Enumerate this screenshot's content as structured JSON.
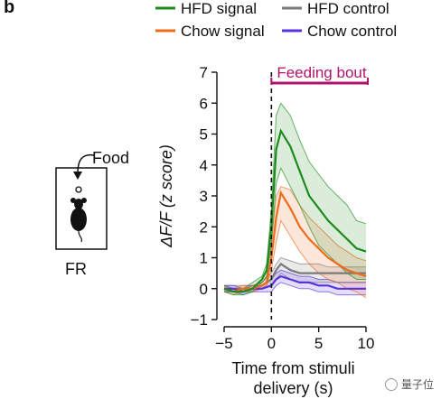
{
  "panel_letter": "b",
  "food_label": "Food",
  "mouse_caption": "FR",
  "watermark": "量子位",
  "chart_data": {
    "type": "line",
    "ylabel": "ΔF/F (z score)",
    "xlabel_lines": [
      "Time from stimuli",
      "delivery (s)"
    ],
    "xlim": [
      -5,
      10
    ],
    "ylim": [
      -1,
      7
    ],
    "xticks": [
      -5,
      0,
      5,
      10
    ],
    "yticks": [
      -1,
      0,
      1,
      2,
      3,
      4,
      5,
      6,
      7
    ],
    "event": {
      "x": 0,
      "label": "Feeding bout",
      "color": "#b0136a"
    },
    "legend": [
      {
        "name": "HFD signal",
        "color": "#1c8a1c"
      },
      {
        "name": "HFD control",
        "color": "#7a7a7a"
      },
      {
        "name": "Chow signal",
        "color": "#f06a1a"
      },
      {
        "name": "Chow control",
        "color": "#5533dd"
      }
    ],
    "series": [
      {
        "name": "HFD signal",
        "color": "#1c8a1c",
        "x": [
          -5,
          -4,
          -3,
          -2,
          -1,
          -0.5,
          0,
          0.5,
          1,
          2,
          3,
          4,
          5,
          6,
          7,
          8,
          9,
          10
        ],
        "y": [
          0.0,
          -0.1,
          -0.1,
          0.0,
          0.3,
          0.6,
          2.0,
          4.5,
          5.1,
          4.6,
          3.8,
          3.0,
          2.6,
          2.2,
          1.9,
          1.6,
          1.3,
          1.2
        ],
        "lower": [
          -0.1,
          -0.2,
          -0.2,
          -0.1,
          0.2,
          0.4,
          1.4,
          3.4,
          3.9,
          3.3,
          2.7,
          2.0,
          1.4,
          1.1,
          0.8,
          0.5,
          0.3,
          0.3
        ],
        "upper": [
          0.1,
          0.0,
          0.0,
          0.2,
          0.4,
          0.8,
          2.6,
          5.6,
          6.0,
          5.6,
          4.8,
          4.1,
          3.7,
          3.3,
          3.0,
          2.7,
          2.2,
          2.1
        ]
      },
      {
        "name": "Chow signal",
        "color": "#f06a1a",
        "x": [
          -5,
          -4,
          -3,
          -2,
          -1,
          -0.5,
          0,
          0.5,
          1,
          2,
          3,
          4,
          5,
          6,
          7,
          8,
          9,
          10
        ],
        "y": [
          0.0,
          -0.1,
          0.0,
          0.0,
          0.1,
          0.2,
          1.0,
          2.3,
          3.1,
          2.6,
          2.0,
          1.6,
          1.3,
          1.0,
          0.8,
          0.6,
          0.5,
          0.4
        ],
        "lower": [
          -0.1,
          -0.2,
          -0.1,
          -0.1,
          0.0,
          0.1,
          0.6,
          1.5,
          2.2,
          1.7,
          1.2,
          0.8,
          0.5,
          0.3,
          0.2,
          0.0,
          -0.1,
          -0.3
        ],
        "upper": [
          0.1,
          0.0,
          0.1,
          0.1,
          0.2,
          0.4,
          1.5,
          3.0,
          3.3,
          3.2,
          2.7,
          2.3,
          2.0,
          1.7,
          1.4,
          1.2,
          1.0,
          0.9
        ]
      },
      {
        "name": "HFD control",
        "color": "#7a7a7a",
        "x": [
          -5,
          -4,
          -3,
          -2,
          -1,
          0,
          0.5,
          1,
          2,
          3,
          4,
          5,
          6,
          7,
          8,
          9,
          10
        ],
        "y": [
          0.0,
          0.0,
          0.0,
          0.0,
          0.1,
          0.3,
          0.6,
          0.8,
          0.6,
          0.5,
          0.5,
          0.5,
          0.5,
          0.5,
          0.5,
          0.5,
          0.5
        ],
        "lower": [
          -0.1,
          -0.1,
          -0.1,
          -0.1,
          0.0,
          0.1,
          0.3,
          0.5,
          0.3,
          0.2,
          0.2,
          0.2,
          0.2,
          0.2,
          0.2,
          0.2,
          0.2
        ],
        "upper": [
          0.1,
          0.1,
          0.1,
          0.1,
          0.2,
          0.5,
          0.8,
          1.0,
          0.9,
          0.8,
          0.8,
          0.8,
          0.7,
          0.7,
          0.7,
          0.7,
          0.7
        ]
      },
      {
        "name": "Chow control",
        "color": "#5533dd",
        "x": [
          -5,
          -4,
          -3,
          -2,
          -1,
          0,
          0.5,
          1,
          2,
          3,
          4,
          5,
          6,
          7,
          8,
          9,
          10
        ],
        "y": [
          0.0,
          0.0,
          -0.1,
          0.0,
          0.0,
          0.1,
          0.3,
          0.4,
          0.3,
          0.2,
          0.2,
          0.1,
          0.1,
          0.0,
          0.0,
          0.0,
          0.0
        ],
        "lower": [
          -0.1,
          -0.1,
          -0.2,
          -0.1,
          -0.1,
          -0.1,
          0.1,
          0.2,
          0.1,
          0.0,
          0.0,
          -0.1,
          -0.1,
          -0.2,
          -0.2,
          -0.2,
          -0.2
        ],
        "upper": [
          0.1,
          0.1,
          0.0,
          0.1,
          0.1,
          0.3,
          0.5,
          0.6,
          0.5,
          0.4,
          0.4,
          0.3,
          0.3,
          0.2,
          0.2,
          0.2,
          0.2
        ]
      }
    ]
  }
}
